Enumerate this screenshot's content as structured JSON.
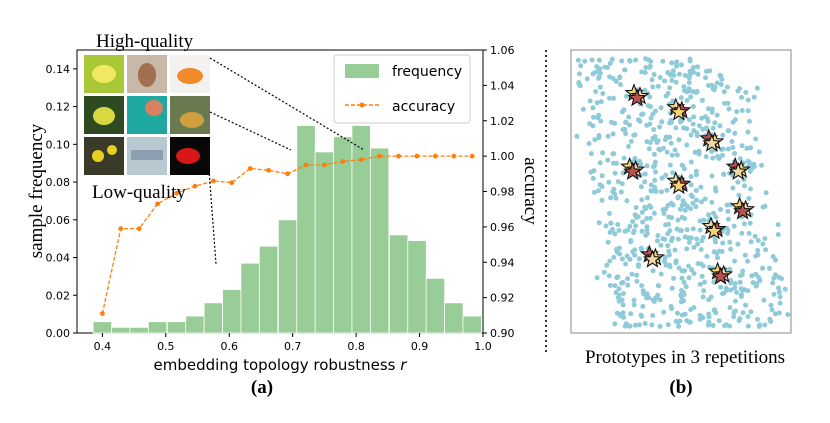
{
  "chart_data": [
    {
      "type": "bar+line",
      "panel_label": "(a)",
      "xlabel_text": "embedding topology robustness ",
      "xlabel_var": "r",
      "ylabel": "sample frequency",
      "y2label": "accuracy",
      "xlim": [
        0.36,
        1.0
      ],
      "ylim": [
        0.0,
        0.15
      ],
      "y2lim": [
        0.9,
        1.06
      ],
      "xticks": [
        "0.4",
        "0.5",
        "0.6",
        "0.7",
        "0.8",
        "0.9",
        "1.0"
      ],
      "yticks": [
        "0.00",
        "0.02",
        "0.04",
        "0.06",
        "0.08",
        "0.10",
        "0.12",
        "0.14"
      ],
      "y2ticks": [
        "0.90",
        "0.92",
        "0.94",
        "0.96",
        "0.98",
        "1.00",
        "1.02",
        "1.04",
        "1.06"
      ],
      "bar_width": 0.0292,
      "histogram": {
        "name": "frequency",
        "color": "#98cd98",
        "x": [
          0.4,
          0.429,
          0.458,
          0.487,
          0.517,
          0.546,
          0.575,
          0.604,
          0.633,
          0.662,
          0.692,
          0.721,
          0.75,
          0.779,
          0.808,
          0.837,
          0.867,
          0.896,
          0.925,
          0.954,
          0.983
        ],
        "values": [
          0.006,
          0.003,
          0.003,
          0.006,
          0.006,
          0.009,
          0.016,
          0.023,
          0.037,
          0.046,
          0.06,
          0.11,
          0.096,
          0.104,
          0.11,
          0.098,
          0.052,
          0.049,
          0.029,
          0.016,
          0.009
        ]
      },
      "line": {
        "name": "accuracy",
        "color": "#ff7f0e",
        "x": [
          0.4,
          0.429,
          0.458,
          0.487,
          0.517,
          0.546,
          0.575,
          0.604,
          0.633,
          0.662,
          0.692,
          0.721,
          0.75,
          0.779,
          0.808,
          0.837,
          0.867,
          0.896,
          0.925,
          0.954,
          0.983
        ],
        "values": [
          0.911,
          0.959,
          0.959,
          0.973,
          0.979,
          0.983,
          0.986,
          0.985,
          0.993,
          0.992,
          0.99,
          0.995,
          0.995,
          0.997,
          0.998,
          1.0,
          1.0,
          1.0,
          1.0,
          1.0,
          1.0
        ]
      },
      "legend": {
        "placement": "top-right",
        "entries": [
          "frequency",
          "accuracy"
        ]
      },
      "annotations": {
        "high": "High-quality",
        "low": "Low-quality"
      },
      "thumbnails": [
        {
          "name": "yellow-butterfly-thumbnail",
          "subject": "yellow butterfly on leaf"
        },
        {
          "name": "small-dog-thumbnail",
          "subject": "small brown dog"
        },
        {
          "name": "goldfish-thumbnail",
          "subject": "orange goldfish"
        },
        {
          "name": "butterfly-dark-thumbnail",
          "subject": "butterfly on dark leaves"
        },
        {
          "name": "teal-animal-thumbnail",
          "subject": "animal on teal background"
        },
        {
          "name": "goldfish-plants-thumbnail",
          "subject": "goldfish among plants"
        },
        {
          "name": "yellow-flowers-thumbnail",
          "subject": "yellow flowers"
        },
        {
          "name": "pale-scene-thumbnail",
          "subject": "pale blue scene"
        },
        {
          "name": "red-fish-thumbnail",
          "subject": "red fish on black"
        }
      ]
    },
    {
      "type": "scatter",
      "panel_label": "(b)",
      "caption": "Prototypes in 3 repetitions",
      "point_color": "#8fcad8",
      "star_fill_colors": [
        "#f2d470",
        "#f0d8a0",
        "#c05050"
      ],
      "cloud_description": "dense point cloud, shape of a tilted parallelogram",
      "prototype_clusters": [
        {
          "x": 0.3,
          "y": 0.84
        },
        {
          "x": 0.49,
          "y": 0.79
        },
        {
          "x": 0.64,
          "y": 0.68
        },
        {
          "x": 0.28,
          "y": 0.58
        },
        {
          "x": 0.49,
          "y": 0.53
        },
        {
          "x": 0.76,
          "y": 0.58
        },
        {
          "x": 0.78,
          "y": 0.44
        },
        {
          "x": 0.65,
          "y": 0.37
        },
        {
          "x": 0.37,
          "y": 0.27
        },
        {
          "x": 0.68,
          "y": 0.21
        }
      ]
    }
  ]
}
